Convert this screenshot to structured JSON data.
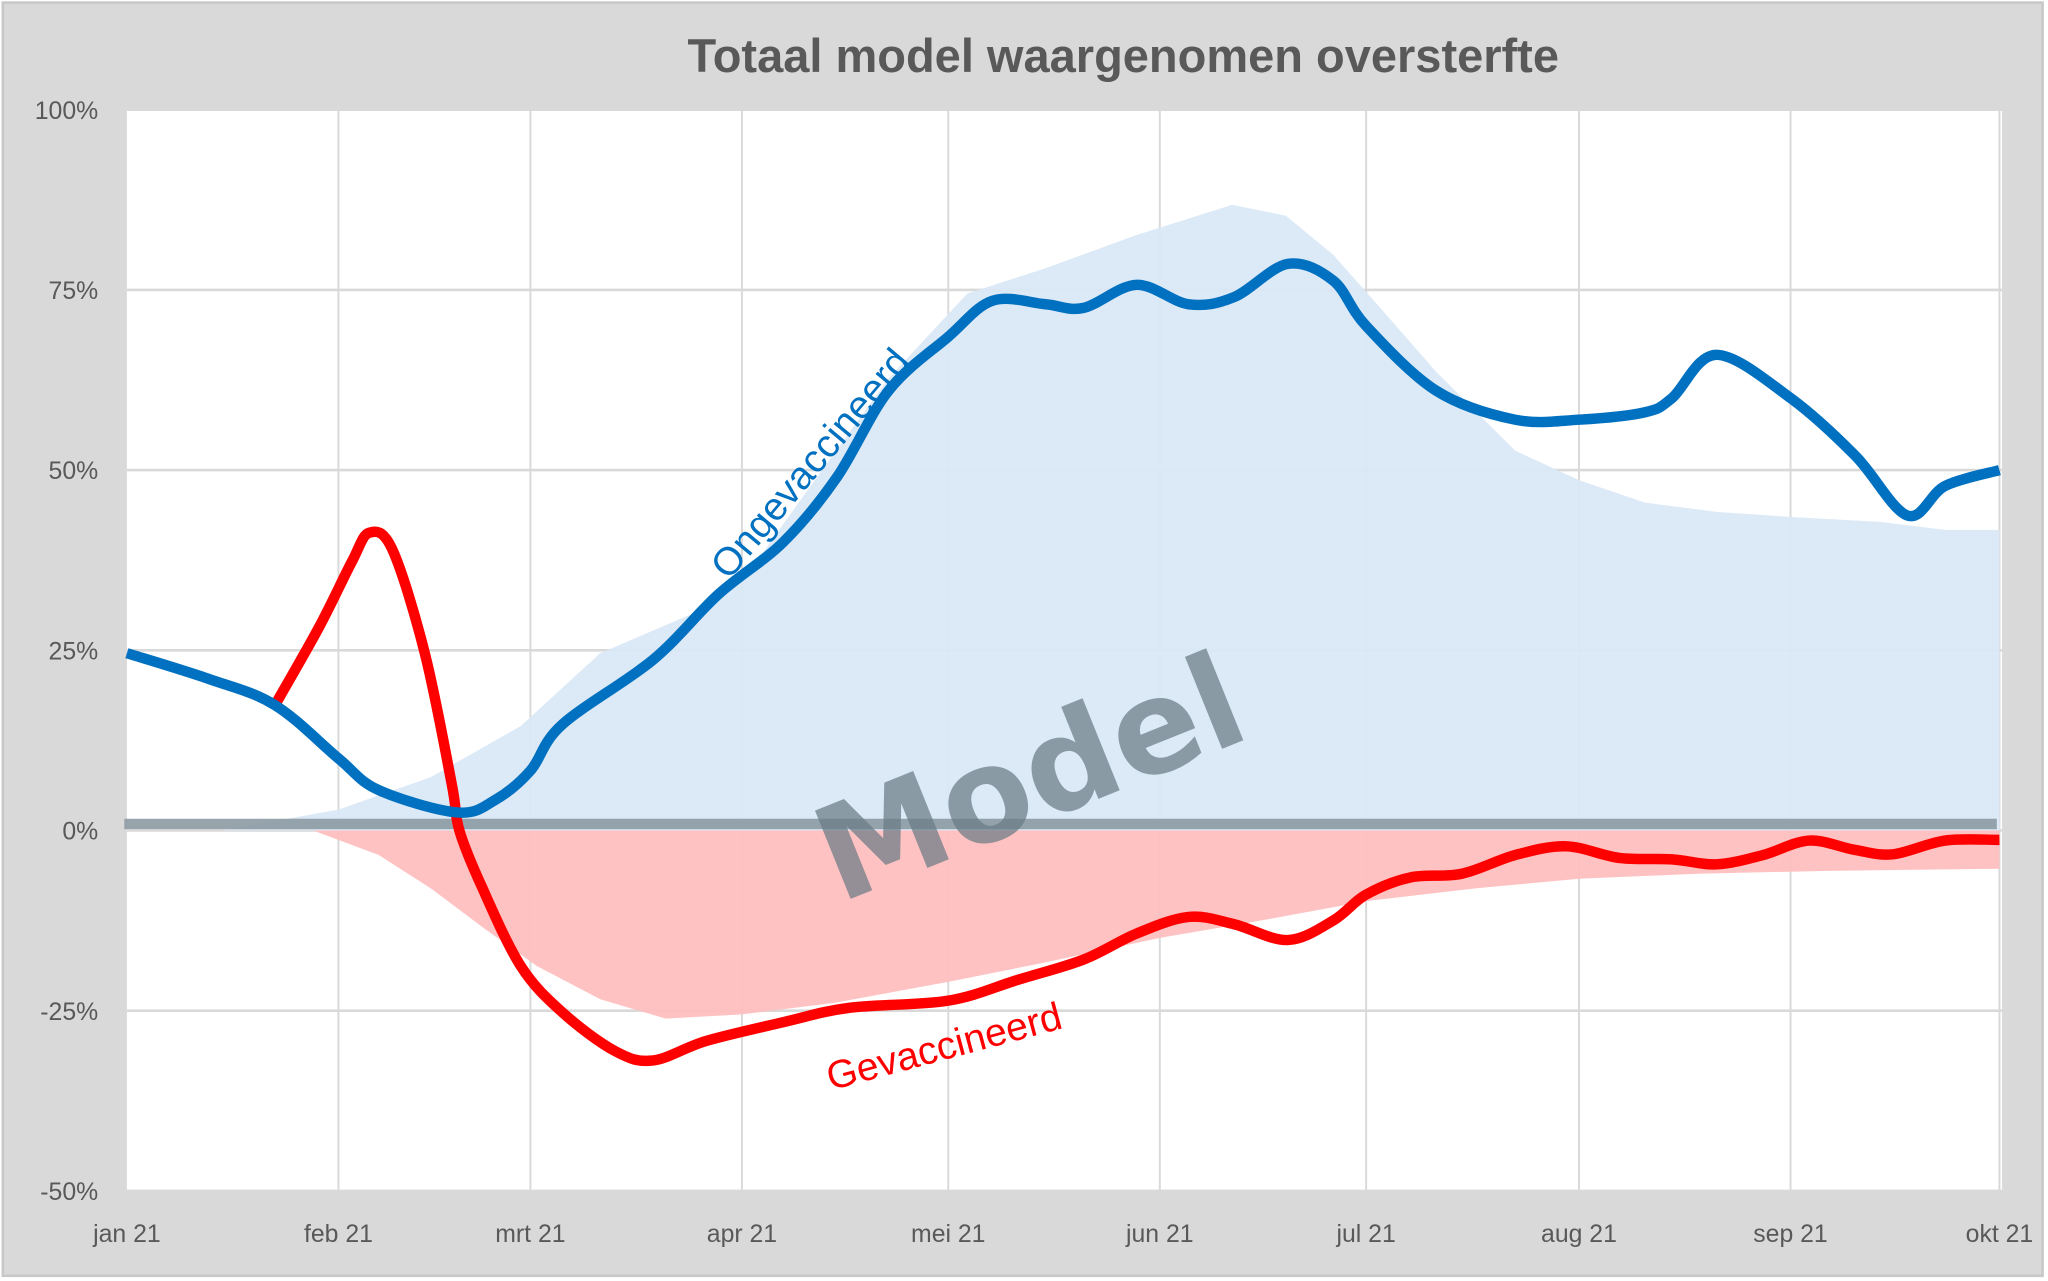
{
  "chart_data": {
    "type": "line",
    "title": "Totaal model waargenomen oversterfte",
    "xlabel": "",
    "ylabel": "",
    "x_unit": "months since jan 21",
    "categories": [
      "jan 21",
      "feb 21",
      "mrt 21",
      "apr 21",
      "mei 21",
      "jun 21",
      "jul 21",
      "aug 21",
      "sep 21",
      "okt 21"
    ],
    "y_ticks": [
      "100%",
      "75%",
      "50%",
      "25%",
      "0%",
      "-25%",
      "-50%"
    ],
    "y_tick_values": [
      100,
      75,
      50,
      25,
      0,
      -25,
      -50
    ],
    "ylim": [
      -50,
      100
    ],
    "xlim": [
      0,
      9
    ],
    "grid": true,
    "watermark": "Model",
    "series": [
      {
        "name": "Ongevaccineerd",
        "kind": "line",
        "color": "#0070C0",
        "x": [
          0,
          0.39,
          0.7,
          1,
          1.21,
          1.62,
          1.82,
          2,
          2.15,
          2.58,
          2.89,
          3.2,
          3.46,
          3.71,
          4,
          4.21,
          4.46,
          4.64,
          4.89,
          5.14,
          5.36,
          5.62,
          5.84,
          6,
          6.33,
          6.7,
          7,
          7.31,
          7.44,
          7.65,
          8,
          8.31,
          8.56,
          8.74,
          9
        ],
        "values": [
          24.6,
          21,
          17.4,
          10,
          5.6,
          2.5,
          4.3,
          8.3,
          14.7,
          23.7,
          32.8,
          40,
          49,
          61,
          68.5,
          73.5,
          73,
          72.5,
          75.7,
          73,
          74,
          78.6,
          76.3,
          70,
          61,
          57,
          57,
          58,
          60,
          66,
          60,
          52,
          43.7,
          47.8,
          50
        ]
      },
      {
        "name": "Gevaccineerd",
        "kind": "line",
        "color": "#FF0000",
        "x": [
          0.7,
          0.91,
          1.07,
          1.16,
          1.28,
          1.45,
          1.59,
          1.63,
          1.75,
          1.95,
          2.15,
          2.4,
          2.58,
          2.83,
          3.2,
          3.52,
          4,
          4.33,
          4.64,
          4.89,
          5.14,
          5.36,
          5.62,
          5.84,
          6,
          6.21,
          6.45,
          6.7,
          6.94,
          7.19,
          7.44,
          7.65,
          7.87,
          8.09,
          8.31,
          8.49,
          8.74,
          9
        ],
        "values": [
          17.4,
          28.3,
          37.3,
          41.3,
          39,
          24.6,
          6.5,
          0,
          -8,
          -18.8,
          -25.2,
          -30.6,
          -31.9,
          -29.2,
          -26.6,
          -24.6,
          -23.6,
          -20.7,
          -17.9,
          -14.3,
          -12,
          -13,
          -15.2,
          -12.5,
          -8.9,
          -6.5,
          -6,
          -3.4,
          -2.2,
          -3.8,
          -4,
          -4.7,
          -3.4,
          -1.4,
          -2.7,
          -3.3,
          -1.4,
          -1.3
        ]
      },
      {
        "name": "Model ongevaccineerd",
        "kind": "area",
        "color": "#DAE8F5",
        "x": [
          0.45,
          1,
          1.48,
          1.95,
          2.33,
          2.76,
          3.07,
          3.32,
          3.71,
          4.09,
          4.46,
          4.89,
          5.35,
          5.61,
          5.84,
          6.09,
          6.33,
          6.7,
          7,
          7.31,
          7.65,
          8,
          8.43,
          8.74,
          9
        ],
        "values": [
          0,
          2.9,
          7.4,
          14.5,
          24.6,
          30,
          37.3,
          47.3,
          62.7,
          74.5,
          78,
          82.6,
          86.8,
          85.3,
          79.9,
          71.7,
          63.6,
          52.7,
          48.6,
          45.5,
          44.2,
          43.5,
          42.8,
          41.7,
          41.7
        ]
      },
      {
        "name": "Model gevaccineerd",
        "kind": "area",
        "color": "#FFBFBF",
        "x": [
          0.88,
          1.21,
          1.48,
          1.75,
          2.03,
          2.33,
          2.64,
          3,
          3.45,
          4,
          4.46,
          5,
          5.45,
          6,
          6.52,
          7,
          7.56,
          8.18,
          9
        ],
        "values": [
          0,
          -3.4,
          -8,
          -13.4,
          -18.8,
          -23.4,
          -26.1,
          -25.5,
          -23.9,
          -21,
          -18.3,
          -14.9,
          -12.7,
          -9.8,
          -8,
          -6.7,
          -6,
          -5.6,
          -5.3
        ]
      }
    ],
    "annotations": [
      {
        "text": "Ongevaccineerd",
        "color": "#0070C0"
      },
      {
        "text": "Gevaccineerd",
        "color": "#FF0000"
      },
      {
        "text": "Model",
        "color": "#6B7B85"
      }
    ]
  },
  "colors": {
    "frame": "#D9D9D9",
    "plot_bg": "#FFFFFF",
    "grid": "#D9D9D9",
    "zero_bar": "#8C9AA3",
    "text": "#595959"
  }
}
